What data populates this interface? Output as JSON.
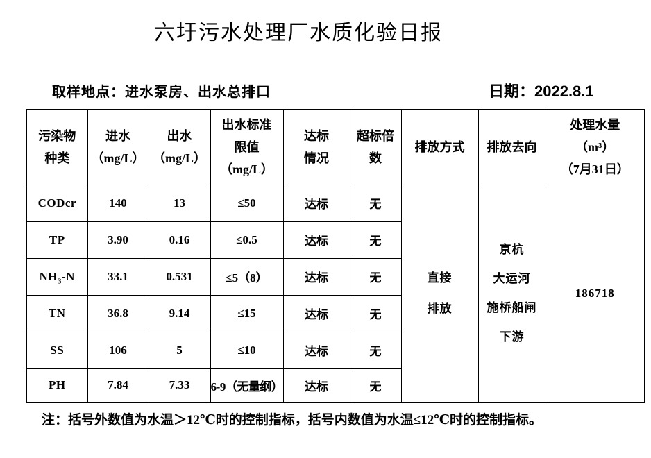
{
  "page": {
    "title": "六圩污水处理厂水质化验日报",
    "sampling_label": "取样地点：进水泵房、出水总排口",
    "date_label": "日期：2022.8.1",
    "footnote": "注：括号外数值为水温＞12℃时的控制指标，括号内数值为水温≤12℃时的控制指标。"
  },
  "table": {
    "headers": [
      {
        "key": "pollutant",
        "lines": [
          "污染物",
          "种类"
        ]
      },
      {
        "key": "inflow",
        "lines": [
          "进水",
          "（mg/L）"
        ]
      },
      {
        "key": "outflow",
        "lines": [
          "出水",
          "（mg/L）"
        ]
      },
      {
        "key": "limit",
        "lines": [
          "出水标准",
          "限值",
          "（mg/L）"
        ]
      },
      {
        "key": "compliance",
        "lines": [
          "达标",
          "情况"
        ]
      },
      {
        "key": "exceedance",
        "lines": [
          "超标倍",
          "数"
        ]
      },
      {
        "key": "discharge-method",
        "lines": [
          "排放方式"
        ]
      },
      {
        "key": "discharge-destination",
        "lines": [
          "排放去向"
        ]
      },
      {
        "key": "treated-volume",
        "lines": [
          "处理水量",
          "（m³）",
          "（7月31日）"
        ]
      }
    ],
    "rows": [
      {
        "pollutant": {
          "pre": "CODcr",
          "sub": "",
          "post": ""
        },
        "inflow": "140",
        "outflow": "13",
        "limit": "≤50",
        "compliance": "达标",
        "exceedance": "无"
      },
      {
        "pollutant": {
          "pre": "TP",
          "sub": "",
          "post": ""
        },
        "inflow": "3.90",
        "outflow": "0.16",
        "limit": "≤0.5",
        "compliance": "达标",
        "exceedance": "无"
      },
      {
        "pollutant": {
          "pre": "NH",
          "sub": "3",
          "post": "-N"
        },
        "inflow": "33.1",
        "outflow": "0.531",
        "limit": "≤5（8）",
        "compliance": "达标",
        "exceedance": "无"
      },
      {
        "pollutant": {
          "pre": "TN",
          "sub": "",
          "post": ""
        },
        "inflow": "36.8",
        "outflow": "9.14",
        "limit": "≤15",
        "compliance": "达标",
        "exceedance": "无"
      },
      {
        "pollutant": {
          "pre": "SS",
          "sub": "",
          "post": ""
        },
        "inflow": "106",
        "outflow": "5",
        "limit": "≤10",
        "compliance": "达标",
        "exceedance": "无"
      },
      {
        "pollutant": {
          "pre": "PH",
          "sub": "",
          "post": ""
        },
        "inflow": "7.84",
        "outflow": "7.33",
        "limit": "6-9（无量纲）",
        "compliance": "达标",
        "exceedance": "无"
      }
    ],
    "merged": {
      "discharge_method_lines": [
        "直接",
        "排放"
      ],
      "discharge_destination_lines": [
        "京杭",
        "大运河",
        "施桥船闸",
        "下游"
      ],
      "treated_volume_value": "186718"
    }
  }
}
